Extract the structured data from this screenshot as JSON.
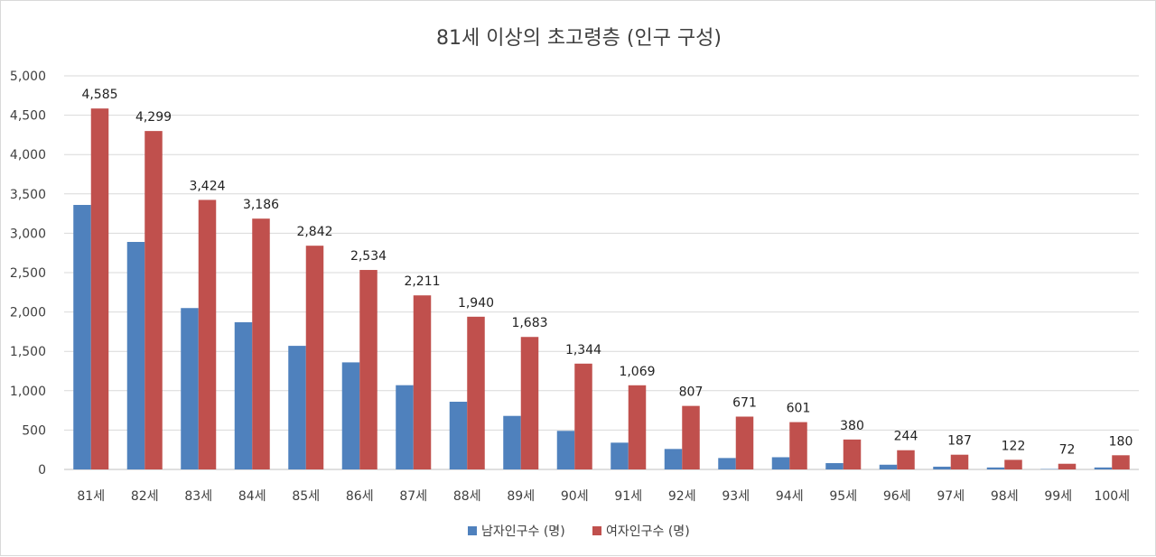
{
  "chart_data": {
    "type": "bar",
    "title": "81세 이상의 초고령층 (인구 구성)",
    "xlabel": "",
    "ylabel": "",
    "ylim": [
      0,
      5000
    ],
    "yticks": [
      0,
      500,
      1000,
      1500,
      2000,
      2500,
      3000,
      3500,
      4000,
      4500,
      5000
    ],
    "ytick_labels": [
      "0",
      "500",
      "1,000",
      "1,500",
      "2,000",
      "2,500",
      "3,000",
      "3,500",
      "4,000",
      "4,500",
      "5,000"
    ],
    "grid": true,
    "legend_position": "bottom",
    "categories": [
      "81세",
      "82세",
      "83세",
      "84세",
      "85세",
      "86세",
      "87세",
      "88세",
      "89세",
      "90세",
      "91세",
      "92세",
      "93세",
      "94세",
      "95세",
      "96세",
      "97세",
      "98세",
      "99세",
      "100세"
    ],
    "series": [
      {
        "name": "남자인구수 (명)",
        "color": "#4f81bd",
        "values": [
          3360,
          2890,
          2050,
          1870,
          1570,
          1360,
          1070,
          860,
          680,
          490,
          340,
          260,
          145,
          155,
          80,
          60,
          35,
          25,
          5,
          25
        ]
      },
      {
        "name": "여자인구수 (명)",
        "color": "#c0504d",
        "values": [
          4585,
          4299,
          3424,
          3186,
          2842,
          2534,
          2211,
          1940,
          1683,
          1344,
          1069,
          807,
          671,
          601,
          380,
          244,
          187,
          122,
          72,
          180
        ],
        "data_labels": [
          "4,585",
          "4,299",
          "3,424",
          "3,186",
          "2,842",
          "2,534",
          "2,211",
          "1,940",
          "1,683",
          "1,344",
          "1,069",
          "807",
          "671",
          "601",
          "380",
          "244",
          "187",
          "122",
          "72",
          "180"
        ]
      }
    ]
  }
}
